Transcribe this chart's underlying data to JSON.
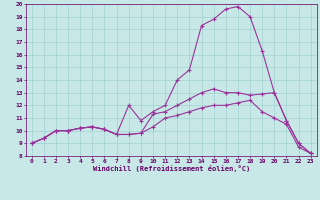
{
  "xlabel": "Windchill (Refroidissement éolien,°C)",
  "bg_color": "#c8e8e8",
  "line_color": "#993399",
  "grid_color": "#99cccc",
  "xlim": [
    -0.5,
    23.5
  ],
  "ylim": [
    8,
    20
  ],
  "xticks": [
    0,
    1,
    2,
    3,
    4,
    5,
    6,
    7,
    8,
    9,
    10,
    11,
    12,
    13,
    14,
    15,
    16,
    17,
    18,
    19,
    20,
    21,
    22,
    23
  ],
  "yticks": [
    8,
    9,
    10,
    11,
    12,
    13,
    14,
    15,
    16,
    17,
    18,
    19,
    20
  ],
  "line1_x": [
    0,
    1,
    2,
    3,
    4,
    5,
    6,
    7,
    8,
    9,
    10,
    11,
    12,
    13,
    14,
    15,
    16,
    17,
    18,
    19,
    20,
    21,
    22,
    23
  ],
  "line1_y": [
    9.0,
    9.4,
    10.0,
    10.0,
    10.2,
    10.3,
    10.1,
    9.7,
    9.7,
    9.8,
    11.3,
    11.5,
    12.0,
    12.5,
    13.0,
    13.3,
    13.0,
    13.0,
    12.8,
    12.9,
    13.0,
    10.8,
    9.0,
    8.2
  ],
  "line2_x": [
    0,
    1,
    2,
    3,
    4,
    5,
    6,
    7,
    8,
    9,
    10,
    11,
    12,
    13,
    14,
    15,
    16,
    17,
    18,
    19,
    20,
    21,
    22,
    23
  ],
  "line2_y": [
    9.0,
    9.4,
    10.0,
    10.0,
    10.2,
    10.3,
    10.1,
    9.7,
    12.0,
    10.8,
    11.5,
    12.0,
    14.0,
    14.8,
    18.3,
    18.8,
    19.6,
    19.8,
    19.0,
    16.3,
    13.0,
    10.8,
    9.0,
    8.2
  ],
  "line3_x": [
    0,
    1,
    2,
    3,
    4,
    5,
    6,
    7,
    8,
    9,
    10,
    11,
    12,
    13,
    14,
    15,
    16,
    17,
    18,
    19,
    20,
    21,
    22,
    23
  ],
  "line3_y": [
    9.0,
    9.4,
    10.0,
    10.0,
    10.2,
    10.3,
    10.1,
    9.7,
    9.7,
    9.8,
    10.3,
    11.0,
    11.2,
    11.5,
    11.8,
    12.0,
    12.0,
    12.2,
    12.4,
    11.5,
    11.0,
    10.5,
    8.7,
    8.2
  ],
  "tick_color": "#660066",
  "tick_fontsize": 4.5,
  "xlabel_fontsize": 5.0,
  "linewidth": 0.8,
  "markersize": 2.5
}
